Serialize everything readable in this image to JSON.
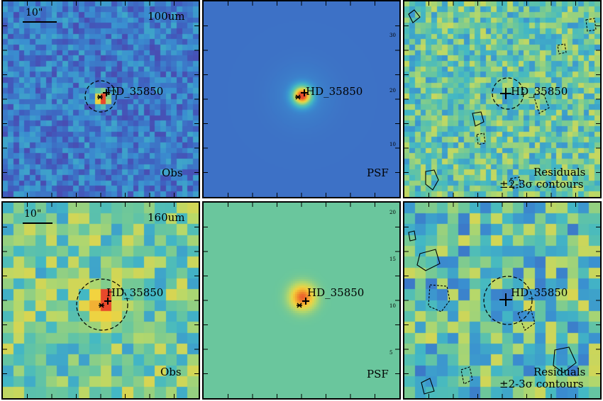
{
  "rows": [
    {
      "id": "100um",
      "band_label": "100um",
      "scale_label": "10\"",
      "target_label": "HD_35850",
      "obs_label": "Obs",
      "psf_label": "PSF",
      "residual_label_1": "Residuals",
      "residual_label_2": "±2-3σ contours",
      "psf_axis_ticks": [
        "10",
        "20",
        "30"
      ]
    },
    {
      "id": "160um",
      "band_label": "160um",
      "scale_label": "10\"",
      "target_label": "HD_35850",
      "obs_label": "Obs",
      "psf_label": "PSF",
      "residual_label_1": "Residuals",
      "residual_label_2": "±2-3σ contours",
      "psf_axis_ticks": [
        "5",
        "10",
        "15",
        "20"
      ]
    }
  ],
  "colormap": [
    "#3b0f70",
    "#5a2d9c",
    "#3f5fbf",
    "#3a8fd0",
    "#43b8c4",
    "#6cc79b",
    "#b6d86a",
    "#f2d33f",
    "#f29d2e",
    "#e8492b"
  ]
}
